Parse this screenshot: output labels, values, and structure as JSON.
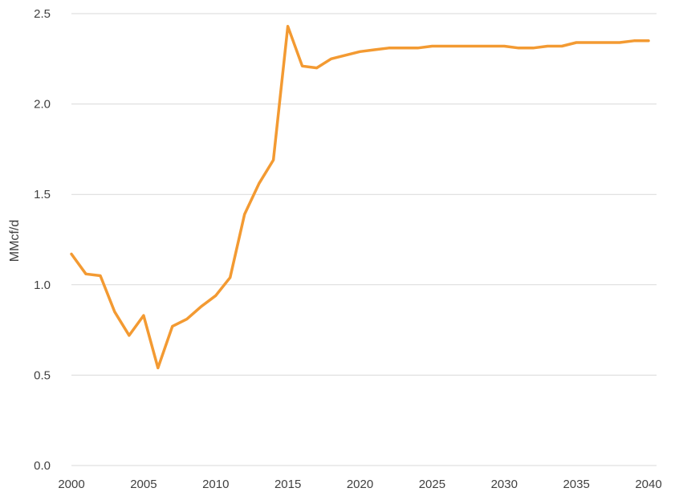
{
  "chart_data": {
    "type": "line",
    "title": "",
    "xlabel": "",
    "ylabel": "MMcf/d",
    "xlim": [
      2000,
      2040
    ],
    "ylim": [
      0,
      2.5
    ],
    "y_ticks": [
      "0.0",
      "0.5",
      "1.0",
      "1.5",
      "2.0",
      "2.5"
    ],
    "x_ticks": [
      "2000",
      "2005",
      "2010",
      "2015",
      "2020",
      "2025",
      "2030",
      "2035",
      "2040"
    ],
    "grid": "horizontal",
    "legend": "none",
    "series": [
      {
        "color": "#f39a32",
        "x": [
          2000,
          2001,
          2002,
          2003,
          2004,
          2005,
          2006,
          2007,
          2008,
          2009,
          2010,
          2011,
          2012,
          2013,
          2014,
          2015,
          2016,
          2017,
          2018,
          2019,
          2020,
          2021,
          2022,
          2023,
          2024,
          2025,
          2026,
          2027,
          2028,
          2029,
          2030,
          2031,
          2032,
          2033,
          2034,
          2035,
          2036,
          2037,
          2038,
          2039,
          2040
        ],
        "values": [
          1.17,
          1.06,
          1.05,
          0.85,
          0.72,
          0.83,
          0.54,
          0.77,
          0.81,
          0.88,
          0.94,
          1.04,
          1.39,
          1.56,
          1.69,
          2.43,
          2.21,
          2.2,
          2.25,
          2.27,
          2.29,
          2.3,
          2.31,
          2.31,
          2.31,
          2.32,
          2.32,
          2.32,
          2.32,
          2.32,
          2.32,
          2.31,
          2.31,
          2.32,
          2.32,
          2.34,
          2.34,
          2.34,
          2.34,
          2.35,
          2.35
        ]
      }
    ]
  }
}
